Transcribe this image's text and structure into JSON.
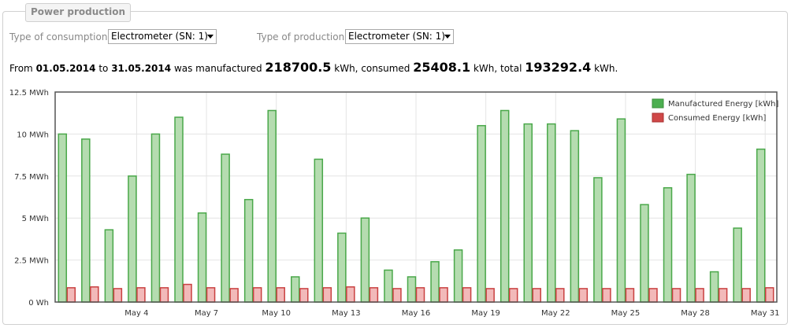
{
  "panel": {
    "title": "Power production"
  },
  "filters": {
    "consumption_label": "Type of consumption:",
    "consumption_value": "Electrometer (SN: 1)",
    "production_label": "Type of production:",
    "production_value": "Electrometer (SN: 1)"
  },
  "summary": {
    "from_label": "From",
    "from_date": "01.05.2014",
    "to_label": "to",
    "to_date": "31.05.2014",
    "manufactured_label": "was manufactured",
    "manufactured_value": "218700.5",
    "consumed_label": "kWh, consumed",
    "consumed_value": "25408.1",
    "total_label": "kWh, total",
    "total_value": "193292.4",
    "unit_end": "kWh."
  },
  "colors": {
    "manufactured_fill": "#b5dcb0",
    "manufactured_stroke": "#4aa84a",
    "consumed_fill": "#f2b9b9",
    "consumed_stroke": "#c94040",
    "grid": "#e4e4e4",
    "axis": "#555555"
  },
  "chart_data": {
    "type": "bar",
    "title": "",
    "xlabel": "",
    "ylabel": "",
    "ylim": [
      0,
      12.5
    ],
    "y_unit": "MWh",
    "y_ticks": [
      {
        "value": 0,
        "label": "0 Wh"
      },
      {
        "value": 2.5,
        "label": "2.5 MWh"
      },
      {
        "value": 5,
        "label": "5 MWh"
      },
      {
        "value": 7.5,
        "label": "7.5 MWh"
      },
      {
        "value": 10,
        "label": "10 MWh"
      },
      {
        "value": 12.5,
        "label": "12.5 MWh"
      }
    ],
    "categories": [
      "May 1",
      "May 2",
      "May 3",
      "May 4",
      "May 5",
      "May 6",
      "May 7",
      "May 8",
      "May 9",
      "May 10",
      "May 11",
      "May 12",
      "May 13",
      "May 14",
      "May 15",
      "May 16",
      "May 17",
      "May 18",
      "May 19",
      "May 20",
      "May 21",
      "May 22",
      "May 23",
      "May 24",
      "May 25",
      "May 26",
      "May 27",
      "May 28",
      "May 29",
      "May 30",
      "May 31"
    ],
    "x_tick_labels": [
      "May 4",
      "May 7",
      "May 10",
      "May 13",
      "May 16",
      "May 19",
      "May 22",
      "May 25",
      "May 28",
      "May 31"
    ],
    "grid": true,
    "legend_position": "top-right",
    "series": [
      {
        "name": "Manufactured Energy [kWh]",
        "values": [
          10.0,
          9.7,
          4.3,
          7.5,
          10.0,
          11.0,
          5.3,
          8.8,
          6.1,
          11.4,
          1.5,
          8.5,
          4.1,
          5.0,
          1.9,
          1.5,
          2.4,
          3.1,
          10.5,
          11.4,
          10.6,
          10.6,
          10.2,
          7.4,
          10.9,
          5.8,
          6.8,
          7.6,
          1.8,
          4.4,
          9.1
        ]
      },
      {
        "name": "Consumed Energy [kWh]",
        "values": [
          0.85,
          0.9,
          0.8,
          0.85,
          0.85,
          1.05,
          0.85,
          0.8,
          0.85,
          0.85,
          0.8,
          0.85,
          0.9,
          0.85,
          0.8,
          0.85,
          0.85,
          0.85,
          0.8,
          0.8,
          0.8,
          0.8,
          0.8,
          0.8,
          0.8,
          0.8,
          0.8,
          0.8,
          0.8,
          0.8,
          0.85
        ]
      }
    ]
  }
}
